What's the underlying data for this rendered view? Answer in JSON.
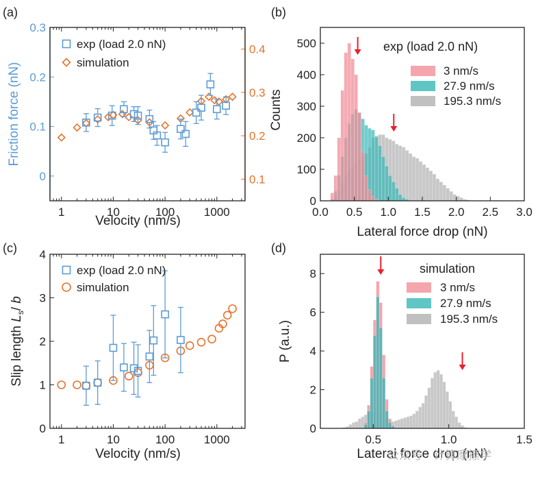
{
  "colors": {
    "blue": "#5b9bd5",
    "orange": "#e8722a",
    "pink": "#f28e98",
    "teal": "#38b6b6",
    "gray": "#b0b0b0",
    "red": "#e8202a",
    "axis": "#222222"
  },
  "watermark": "公众号 · 计算摩擦学",
  "chart_data": [
    {
      "id": "a",
      "panel_label": "(a)",
      "type": "scatter",
      "xlabel": "Velocity (nm/s)",
      "xscale": "log",
      "xlim": [
        0.6,
        3500
      ],
      "xticks": [
        "1",
        "10",
        "100",
        "1000"
      ],
      "ylabel_left": "Friction force (nN)",
      "ylim_left": [
        -0.05,
        0.3
      ],
      "yticks_left": [
        "0",
        "0.1",
        "0.2",
        "0.3"
      ],
      "ylim_right": [
        0.05,
        0.45
      ],
      "yticks_right": [
        "0.1",
        "0.2",
        "0.3",
        "0.4"
      ],
      "legend": [
        "exp  (load 2.0 nN)",
        "simulation"
      ],
      "series": [
        {
          "name": "exp",
          "axis": "left",
          "marker": "square",
          "x": [
            3,
            5,
            9.5,
            16,
            25,
            30,
            50,
            60,
            70,
            100,
            200,
            250,
            400,
            500,
            750,
            1000,
            1500
          ],
          "y": [
            0.108,
            0.118,
            0.122,
            0.135,
            0.125,
            0.122,
            0.115,
            0.092,
            0.082,
            0.068,
            0.095,
            0.085,
            0.128,
            0.138,
            0.185,
            0.135,
            0.142
          ],
          "err": [
            0.018,
            0.018,
            0.02,
            0.015,
            0.015,
            0.018,
            0.018,
            0.018,
            0.02,
            0.02,
            0.02,
            0.025,
            0.022,
            0.025,
            0.022,
            0.02,
            0.018
          ]
        },
        {
          "name": "simulation",
          "axis": "right",
          "marker": "diamond",
          "x": [
            1,
            2,
            3,
            5,
            8,
            10,
            15,
            20,
            30,
            50,
            100,
            200,
            300,
            500,
            700,
            900,
            1100,
            1500,
            2000
          ],
          "y": [
            0.196,
            0.219,
            0.229,
            0.238,
            0.243,
            0.248,
            0.25,
            0.243,
            0.236,
            0.231,
            0.224,
            0.24,
            0.254,
            0.28,
            0.29,
            0.282,
            0.279,
            0.284,
            0.29
          ]
        }
      ]
    },
    {
      "id": "b",
      "panel_label": "(b)",
      "type": "histogram",
      "xlabel": "Lateral force drop (nN)",
      "ylabel": "Counts",
      "xlim": [
        0,
        3
      ],
      "ylim": [
        0,
        550
      ],
      "xticks": [
        "0.0",
        "0.5",
        "1.0",
        "1.5",
        "2.0",
        "2.5",
        "3.0"
      ],
      "yticks": [
        "0",
        "100",
        "200",
        "300",
        "400",
        "500"
      ],
      "legend_title": "exp  (load 2.0 nN)",
      "arrows_x": [
        0.55,
        1.08
      ],
      "series": [
        {
          "name": "3 nm/s",
          "color": "pink",
          "bin_start": 0.15,
          "bin_width": 0.05,
          "counts": [
            25,
            80,
            200,
            350,
            470,
            500,
            450,
            400,
            280,
            155,
            80,
            35,
            15,
            5
          ]
        },
        {
          "name": "27.9 nm/s",
          "color": "teal",
          "bin_start": 0.15,
          "bin_width": 0.05,
          "counts": [
            5,
            30,
            80,
            140,
            200,
            245,
            275,
            290,
            280,
            260,
            240,
            230,
            225,
            205,
            175,
            140,
            110,
            80,
            60,
            40,
            20,
            10,
            5
          ]
        },
        {
          "name": "195.3 nm/s",
          "color": "gray",
          "bin_start": 0.15,
          "bin_width": 0.05,
          "counts": [
            5,
            15,
            30,
            55,
            80,
            100,
            110,
            120,
            130,
            140,
            150,
            170,
            200,
            200,
            210,
            210,
            200,
            195,
            190,
            180,
            175,
            170,
            160,
            150,
            140,
            135,
            125,
            115,
            105,
            95,
            85,
            70,
            60,
            50,
            40,
            30,
            20,
            15,
            10,
            5,
            3
          ]
        }
      ]
    },
    {
      "id": "c",
      "panel_label": "(c)",
      "type": "scatter",
      "xlabel": "Velocity (nm/s)",
      "xscale": "log",
      "xlim": [
        0.6,
        3500
      ],
      "xticks": [
        "1",
        "10",
        "100",
        "1000"
      ],
      "ylabel_main": "Slip length ",
      "ylabel_L": "L",
      "ylabel_sub": "s",
      "ylabel_rest": "/ ",
      "ylabel_b": "b",
      "ylim": [
        0,
        4
      ],
      "yticks": [
        "0",
        "1",
        "2",
        "3",
        "4"
      ],
      "legend": [
        "exp  (load 2.0 nN)",
        "simulation"
      ],
      "series": [
        {
          "name": "exp",
          "marker": "square",
          "x": [
            3,
            5,
            10,
            16,
            25,
            30,
            50,
            60,
            100,
            200
          ],
          "y": [
            0.98,
            1.05,
            1.85,
            1.4,
            1.38,
            1.32,
            1.65,
            2.02,
            2.62,
            2.03
          ],
          "err": [
            0.45,
            0.5,
            0.75,
            0.55,
            0.6,
            0.6,
            0.6,
            0.8,
            1.0,
            0.75
          ]
        },
        {
          "name": "simulation",
          "marker": "circle",
          "x": [
            1,
            2,
            3,
            5,
            10,
            20,
            30,
            50,
            100,
            200,
            300,
            500,
            800,
            1100,
            1300,
            1600,
            2000
          ],
          "y": [
            1.0,
            1.0,
            0.98,
            1.05,
            1.1,
            1.2,
            1.28,
            1.45,
            1.62,
            1.78,
            1.9,
            1.98,
            2.05,
            2.3,
            2.4,
            2.6,
            2.75
          ]
        }
      ]
    },
    {
      "id": "d",
      "panel_label": "(d)",
      "type": "histogram",
      "xlabel": "Lateral force drop (nN)",
      "ylabel": "P (a.u.)",
      "xlim": [
        0.15,
        1.5
      ],
      "ylim": [
        0,
        9
      ],
      "xticks": [
        "0.5",
        "1.0",
        "1.5"
      ],
      "yticks": [
        "0",
        "2",
        "4",
        "6",
        "8"
      ],
      "legend_title": "simulation",
      "arrows_x": [
        0.55,
        1.09
      ],
      "series": [
        {
          "name": "3 nm/s",
          "color": "pink",
          "bin_start": 0.44,
          "bin_width": 0.02,
          "counts": [
            0.3,
            1.2,
            3.2,
            5.6,
            7.6,
            6.5,
            3.8,
            1.5,
            0.5,
            0.15
          ]
        },
        {
          "name": "27.9 nm/s",
          "color": "teal",
          "bin_start": 0.44,
          "bin_width": 0.02,
          "counts": [
            0.2,
            0.9,
            2.6,
            4.8,
            6.8,
            5.2,
            2.6,
            0.9,
            0.3,
            0.1
          ]
        },
        {
          "name": "195.3 nm/s",
          "color": "gray",
          "bin_start": 0.3,
          "bin_width": 0.02,
          "counts": [
            0.05,
            0.1,
            0.2,
            0.3,
            0.35,
            0.5,
            0.6,
            0.7,
            0.8,
            0.9,
            0.9,
            0.8,
            0.7,
            0.6,
            0.5,
            0.4,
            0.35,
            0.4,
            0.45,
            0.5,
            0.55,
            0.6,
            0.65,
            0.75,
            0.9,
            1.1,
            1.3,
            1.7,
            2.1,
            2.6,
            2.9,
            3.0,
            2.8,
            2.4,
            1.9,
            1.4,
            0.9,
            0.6,
            0.3,
            0.15,
            0.05
          ]
        }
      ]
    }
  ]
}
